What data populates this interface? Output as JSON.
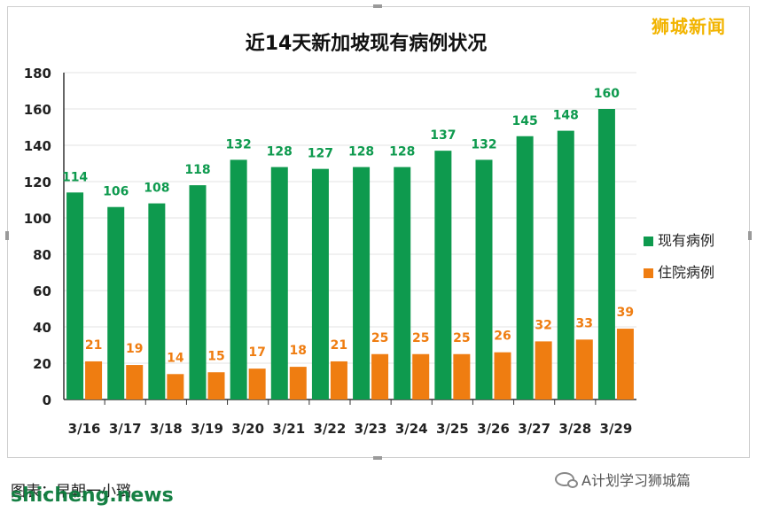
{
  "chart_data": {
    "type": "bar",
    "title": "近14天新加坡现有病例状况",
    "categories": [
      "3/16",
      "3/17",
      "3/18",
      "3/19",
      "3/20",
      "3/21",
      "3/22",
      "3/23",
      "3/24",
      "3/25",
      "3/26",
      "3/27",
      "3/28",
      "3/29"
    ],
    "series": [
      {
        "name": "现有病例",
        "color": "#0e9a4e",
        "values": [
          114,
          106,
          108,
          118,
          132,
          128,
          127,
          128,
          128,
          137,
          132,
          145,
          148,
          160
        ]
      },
      {
        "name": "住院病例",
        "color": "#ef7d11",
        "values": [
          21,
          19,
          14,
          15,
          17,
          18,
          21,
          25,
          25,
          25,
          26,
          32,
          33,
          39
        ]
      }
    ],
    "yticks": [
      0,
      20,
      40,
      60,
      80,
      100,
      120,
      140,
      160,
      180
    ],
    "ylim": [
      0,
      180
    ],
    "grid": true,
    "legend": "right"
  },
  "watermark_top": "狮城新闻",
  "caption": "图表：早朝一小璐",
  "watermark_bottom": "shicheng.news",
  "wechat_label": "A计划学习狮城篇",
  "icons": {
    "wechat": "wechat-icon"
  }
}
